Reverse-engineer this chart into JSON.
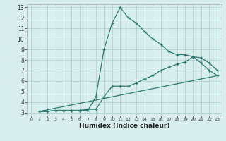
{
  "xlabel": "Humidex (Indice chaleur)",
  "bg_color": "#d8eeed",
  "grid_color": "#aacece",
  "line_color": "#2d7a70",
  "xlim": [
    -0.5,
    23.5
  ],
  "ylim": [
    2.7,
    13.3
  ],
  "xticks": [
    0,
    1,
    2,
    3,
    4,
    5,
    6,
    7,
    8,
    9,
    10,
    11,
    12,
    13,
    14,
    15,
    16,
    17,
    18,
    19,
    20,
    21,
    22,
    23
  ],
  "yticks": [
    3,
    4,
    5,
    6,
    7,
    8,
    9,
    10,
    11,
    12,
    13
  ],
  "line1_x": [
    1,
    2,
    3,
    4,
    5,
    6,
    7,
    8,
    9,
    10,
    11,
    12,
    13,
    14,
    15,
    16,
    17,
    18,
    19,
    20,
    21,
    22,
    23
  ],
  "line1_y": [
    3.1,
    3.1,
    3.2,
    3.2,
    3.2,
    3.2,
    3.2,
    4.5,
    9.0,
    11.5,
    13.0,
    12.0,
    11.5,
    10.7,
    10.0,
    9.5,
    8.8,
    8.5,
    8.5,
    8.3,
    7.7,
    7.0,
    6.5
  ],
  "line2_x": [
    1,
    2,
    3,
    4,
    5,
    6,
    7,
    8,
    9,
    10,
    11,
    12,
    13,
    14,
    15,
    16,
    17,
    18,
    19,
    20,
    21,
    22,
    23
  ],
  "line2_y": [
    3.1,
    3.1,
    3.2,
    3.2,
    3.2,
    3.2,
    3.3,
    3.3,
    4.5,
    5.5,
    5.5,
    5.5,
    5.8,
    6.2,
    6.5,
    7.0,
    7.3,
    7.6,
    7.8,
    8.3,
    8.2,
    7.7,
    7.0
  ],
  "line3_x": [
    1,
    23
  ],
  "line3_y": [
    3.1,
    6.5
  ]
}
